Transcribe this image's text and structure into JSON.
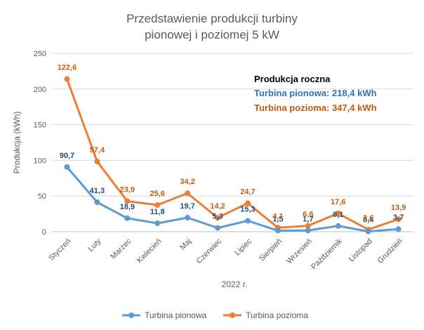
{
  "chart_data": {
    "type": "line",
    "title": [
      "Przedstawienie produkcji turbiny",
      "pionowej i poziomej 5 kW"
    ],
    "xlabel": "2022 r.",
    "ylabel": "Produkcja (kWh)",
    "ylim": [
      0,
      250
    ],
    "yticks": [
      0,
      50,
      100,
      150,
      200,
      250
    ],
    "grid": true,
    "legend": "bottom",
    "categories": [
      "Styczeń",
      "Luty",
      "Marzec",
      "Kwiecień",
      "Maj",
      "Czerwiec",
      "Lipiec",
      "Sierpień",
      "Wrzesień",
      "Październik",
      "Listopad",
      "Grudzień"
    ],
    "series": [
      {
        "name": "Turbina pionowa",
        "color": "#5b9bd5",
        "label_color": "#1f4e79",
        "values": [
          90.7,
          41.3,
          18.9,
          11.8,
          19.7,
          5.3,
          15.3,
          1.5,
          1.7,
          8.1,
          0.4,
          3.7
        ],
        "labels": [
          "90,7",
          "41,3",
          "18,9",
          "11,8",
          "19,7",
          "5,3",
          "15,3",
          "1,5",
          "1,7",
          "8,1",
          "0,4",
          "3,7"
        ]
      },
      {
        "name": "Turbina pozioma",
        "color": "#ed7d31",
        "label_color": "#c55a11",
        "values": [
          214,
          98.5,
          42.8,
          37.4,
          53.9,
          19.5,
          40.0,
          5.6,
          8.3,
          25.7,
          3.0,
          17.6
        ],
        "labels": [
          "122,6",
          "57,4",
          "23,9",
          "25,6",
          "34,2",
          "14,2",
          "24,7",
          "4,1",
          "6,6",
          "17,6",
          "2,6",
          "13,9"
        ]
      }
    ],
    "annotation": {
      "heading": "Produkcja roczna",
      "lines": [
        "Turbina pionowa: 218,4 kWh",
        "Turbina pozioma: 347,4 kWh"
      ]
    }
  }
}
